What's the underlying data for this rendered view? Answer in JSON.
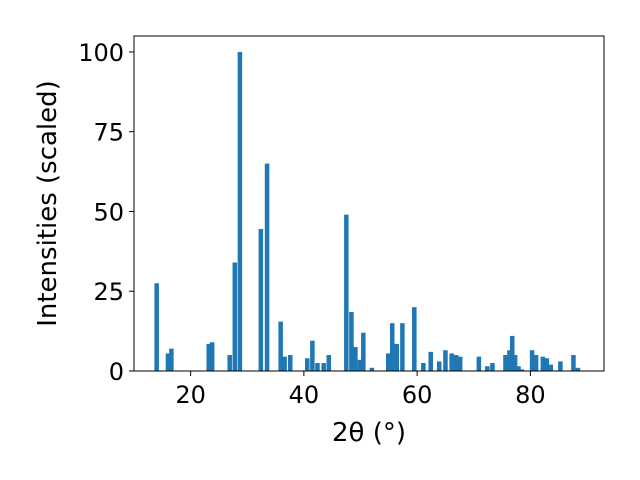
{
  "chart_data": {
    "type": "bar",
    "xlabel": "2θ (°)",
    "ylabel": "Intensities (scaled)",
    "xlim": [
      10,
      93
    ],
    "ylim": [
      0,
      105
    ],
    "x_ticks": [
      20,
      40,
      60,
      80
    ],
    "y_ticks": [
      0,
      25,
      50,
      75,
      100
    ],
    "bar_width": 0.8,
    "bar_color": "#1f77b4",
    "grid": false,
    "series": [
      {
        "x": [
          14.0,
          16.0,
          16.6,
          23.2,
          23.8,
          26.9,
          27.8,
          28.7,
          32.4,
          33.5,
          35.9,
          36.6,
          37.6,
          40.6,
          41.5,
          42.4,
          43.5,
          44.4,
          47.5,
          48.4,
          49.1,
          49.9,
          50.5,
          52.0,
          54.9,
          55.6,
          56.4,
          57.4,
          59.5,
          61.1,
          62.4,
          63.9,
          65.0,
          66.1,
          66.9,
          67.6,
          70.9,
          72.4,
          73.3,
          75.6,
          76.3,
          76.8,
          77.3,
          77.9,
          78.5,
          80.3,
          81.0,
          82.2,
          82.9,
          83.6,
          85.3,
          87.6,
          88.4
        ],
        "values": [
          27.5,
          5.5,
          7.0,
          8.5,
          9.0,
          5.0,
          34.0,
          100.0,
          44.5,
          65.0,
          15.5,
          4.5,
          5.0,
          4.0,
          9.5,
          2.5,
          2.5,
          5.0,
          49.0,
          18.5,
          7.5,
          3.5,
          12.0,
          1.0,
          5.5,
          15.0,
          8.5,
          15.0,
          20.0,
          2.5,
          6.0,
          3.0,
          6.5,
          5.5,
          5.0,
          4.5,
          4.5,
          1.5,
          2.5,
          5.0,
          6.5,
          11.0,
          5.0,
          1.5,
          0.5,
          6.5,
          5.0,
          4.5,
          4.0,
          2.0,
          3.0,
          5.0,
          1.0
        ]
      }
    ]
  }
}
